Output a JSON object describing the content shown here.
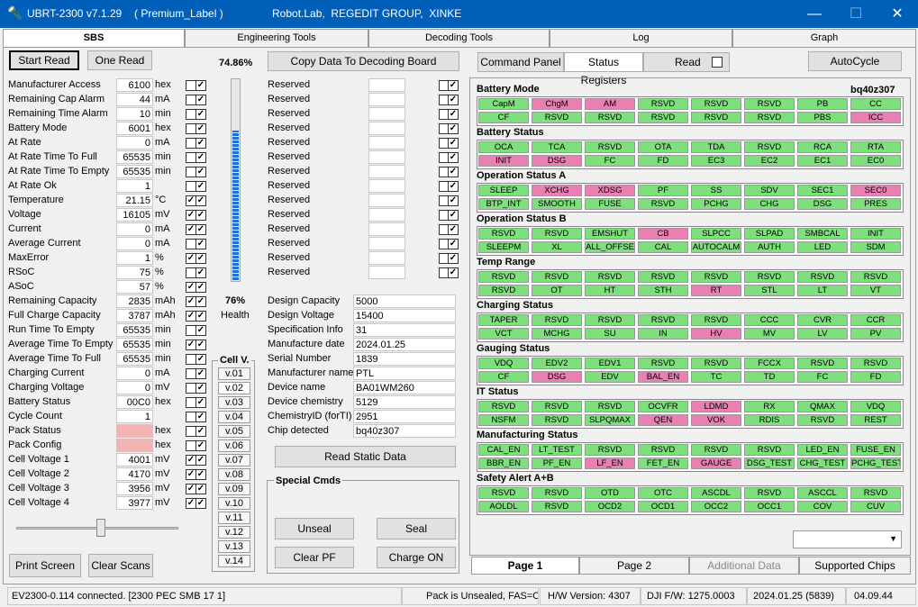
{
  "app": {
    "title": "UBRT-2300 v7.1.29",
    "label": "( Premium_Label )",
    "vendor": "Robot.Lab,  REGEDIT GROUP,  XINKE",
    "colors": {
      "titlebar": "#005fb8",
      "green": "#7de07d",
      "pink": "#ea7fb3",
      "progress": "#1e6fcf"
    }
  },
  "tabs": [
    "SBS",
    "Engineering Tools",
    "Decoding Tools",
    "Log",
    "Graph"
  ],
  "left": {
    "start_read": "Start Read",
    "one_read": "One Read",
    "progress_pct": "74.86%",
    "progress_value": 0.7486,
    "health_pct": "76%",
    "health_label": "Health",
    "health_value": 0.76,
    "copy_btn": "Copy Data To Decoding Board",
    "print_btn": "Print Screen",
    "clear_btn": "Clear Scans",
    "params": [
      {
        "name": "Manufacturer Access",
        "value": "6100",
        "unit": "hex",
        "c1": false,
        "c2": true
      },
      {
        "name": "Remaining Cap Alarm",
        "value": "44",
        "unit": "mA",
        "c1": false,
        "c2": true
      },
      {
        "name": "Remaining Time Alarm",
        "value": "10",
        "unit": "min",
        "c1": false,
        "c2": true
      },
      {
        "name": "Battery Mode",
        "value": "6001",
        "unit": "hex",
        "c1": false,
        "c2": true
      },
      {
        "name": "At Rate",
        "value": "0",
        "unit": "mA",
        "c1": false,
        "c2": true
      },
      {
        "name": "At Rate Time To Full",
        "value": "65535",
        "unit": "min",
        "c1": false,
        "c2": true
      },
      {
        "name": "At Rate Time To Empty",
        "value": "65535",
        "unit": "min",
        "c1": false,
        "c2": true
      },
      {
        "name": "At Rate Ok",
        "value": "1",
        "unit": "",
        "c1": false,
        "c2": true
      },
      {
        "name": "Temperature",
        "value": "21.15",
        "unit": "°C",
        "c1": true,
        "c2": true
      },
      {
        "name": "Voltage",
        "value": "16105",
        "unit": "mV",
        "c1": true,
        "c2": true
      },
      {
        "name": "Current",
        "value": "0",
        "unit": "mA",
        "c1": true,
        "c2": true
      },
      {
        "name": "Average Current",
        "value": "0",
        "unit": "mA",
        "c1": false,
        "c2": true
      },
      {
        "name": "MaxError",
        "value": "1",
        "unit": "%",
        "c1": true,
        "c2": true
      },
      {
        "name": "RSoC",
        "value": "75",
        "unit": "%",
        "c1": false,
        "c2": true
      },
      {
        "name": "ASoC",
        "value": "57",
        "unit": "%",
        "c1": true,
        "c2": true
      },
      {
        "name": "Remaining Capacity",
        "value": "2835",
        "unit": "mAh",
        "c1": true,
        "c2": true
      },
      {
        "name": "Full Charge Capacity",
        "value": "3787",
        "unit": "mAh",
        "c1": true,
        "c2": true
      },
      {
        "name": "Run Time To Empty",
        "value": "65535",
        "unit": "min",
        "c1": false,
        "c2": true
      },
      {
        "name": "Average Time To Empty",
        "value": "65535",
        "unit": "min",
        "c1": true,
        "c2": true
      },
      {
        "name": "Average Time To Full",
        "value": "65535",
        "unit": "min",
        "c1": false,
        "c2": true
      },
      {
        "name": "Charging Current",
        "value": "0",
        "unit": "mA",
        "c1": false,
        "c2": true
      },
      {
        "name": "Charging Voltage",
        "value": "0",
        "unit": "mV",
        "c1": false,
        "c2": true
      },
      {
        "name": "Battery Status",
        "value": "00C0",
        "unit": "hex",
        "c1": false,
        "c2": true
      },
      {
        "name": "Cycle Count",
        "value": "1",
        "unit": "",
        "c1": false,
        "c2": true
      },
      {
        "name": "Pack Status",
        "value": "",
        "unit": "hex",
        "c1": false,
        "c2": true,
        "pink": true
      },
      {
        "name": "Pack Config",
        "value": "",
        "unit": "hex",
        "c1": false,
        "c2": true,
        "pink": true
      },
      {
        "name": "Cell Voltage 1",
        "value": "4001",
        "unit": "mV",
        "c1": true,
        "c2": true
      },
      {
        "name": "Cell Voltage 2",
        "value": "4170",
        "unit": "mV",
        "c1": true,
        "c2": true
      },
      {
        "name": "Cell Voltage 3",
        "value": "3956",
        "unit": "mV",
        "c1": true,
        "c2": true
      },
      {
        "name": "Cell Voltage 4",
        "value": "3977",
        "unit": "mV",
        "c1": true,
        "c2": true
      }
    ],
    "reserved": [
      "Reserved",
      "Reserved",
      "Reserved",
      "Reserved",
      "Reserved",
      "Reserved",
      "Reserved",
      "Reserved",
      "Reserved",
      "Reserved",
      "Reserved",
      "Reserved",
      "Reserved",
      "Reserved"
    ],
    "info": [
      {
        "name": "Design Capacity",
        "value": "5000"
      },
      {
        "name": "Design Voltage",
        "value": "15400"
      },
      {
        "name": "Specification Info",
        "value": "31"
      },
      {
        "name": "Manufacture date",
        "value": "2024.01.25"
      },
      {
        "name": "Serial Number",
        "value": "1839"
      },
      {
        "name": "Manufacturer name",
        "value": "PTL"
      },
      {
        "name": "Device name",
        "value": "BA01WM260"
      },
      {
        "name": "Device chemistry",
        "value": "5129"
      },
      {
        "name": "ChemistryID (forTI)",
        "value": "2951"
      },
      {
        "name": "Chip detected",
        "value": "bq40z307"
      }
    ],
    "read_static": "Read Static Data",
    "cellv_title": "Cell V.",
    "cellv": [
      "v.01",
      "v.02",
      "v.03",
      "v.04",
      "v.05",
      "v.06",
      "v.07",
      "v.08",
      "v.09",
      "v.10",
      "v.11",
      "v.12",
      "v.13",
      "v.14"
    ],
    "special_title": "Special Cmds",
    "special": [
      "Unseal",
      "Seal",
      "Clear PF",
      "Charge ON"
    ]
  },
  "right": {
    "command_panel": "Command Panel",
    "status_registers": "Status Registers",
    "read_label": "Read",
    "autocycle": "AutoCycle",
    "chip": "bq40z307",
    "sections": [
      {
        "title": "Battery Mode",
        "rows": [
          [
            [
              "CapM",
              0
            ],
            [
              "ChgM",
              1
            ],
            [
              "AM",
              1
            ],
            [
              "RSVD",
              0
            ],
            [
              "RSVD",
              0
            ],
            [
              "RSVD",
              0
            ],
            [
              "PB",
              0
            ],
            [
              "CC",
              0
            ]
          ],
          [
            [
              "CF",
              0
            ],
            [
              "RSVD",
              0
            ],
            [
              "RSVD",
              0
            ],
            [
              "RSVD",
              0
            ],
            [
              "RSVD",
              0
            ],
            [
              "RSVD",
              0
            ],
            [
              "PBS",
              0
            ],
            [
              "ICC",
              1
            ]
          ]
        ]
      },
      {
        "title": "Battery Status",
        "rows": [
          [
            [
              "OCA",
              0
            ],
            [
              "TCA",
              0
            ],
            [
              "RSVD",
              0
            ],
            [
              "OTA",
              0
            ],
            [
              "TDA",
              0
            ],
            [
              "RSVD",
              0
            ],
            [
              "RCA",
              0
            ],
            [
              "RTA",
              0
            ]
          ],
          [
            [
              "INIT",
              1
            ],
            [
              "DSG",
              1
            ],
            [
              "FC",
              0
            ],
            [
              "FD",
              0
            ],
            [
              "EC3",
              0
            ],
            [
              "EC2",
              0
            ],
            [
              "EC1",
              0
            ],
            [
              "EC0",
              0
            ]
          ]
        ]
      },
      {
        "title": "Operation Status A",
        "rows": [
          [
            [
              "SLEEP",
              0
            ],
            [
              "XCHG",
              1
            ],
            [
              "XDSG",
              1
            ],
            [
              "PF",
              0
            ],
            [
              "SS",
              0
            ],
            [
              "SDV",
              0
            ],
            [
              "SEC1",
              0
            ],
            [
              "SEC0",
              1
            ]
          ],
          [
            [
              "BTP_INT",
              0
            ],
            [
              "SMOOTH",
              0
            ],
            [
              "FUSE",
              0
            ],
            [
              "RSVD",
              0
            ],
            [
              "PCHG",
              0
            ],
            [
              "CHG",
              0
            ],
            [
              "DSG",
              0
            ],
            [
              "PRES",
              0
            ]
          ]
        ]
      },
      {
        "title": "Operation Status B",
        "rows": [
          [
            [
              "RSVD",
              0
            ],
            [
              "RSVD",
              0
            ],
            [
              "EMSHUT",
              0
            ],
            [
              "CB",
              1
            ],
            [
              "SLPCC",
              0
            ],
            [
              "SLPAD",
              0
            ],
            [
              "SMBCAL",
              0
            ],
            [
              "INIT",
              0
            ]
          ],
          [
            [
              "SLEEPM",
              0
            ],
            [
              "XL",
              0
            ],
            [
              "ALL_OFFSE",
              0
            ],
            [
              "CAL",
              0
            ],
            [
              "AUTOCALM",
              0
            ],
            [
              "AUTH",
              0
            ],
            [
              "LED",
              0
            ],
            [
              "SDM",
              0
            ]
          ]
        ]
      },
      {
        "title": "Temp Range",
        "rows": [
          [
            [
              "RSVD",
              0
            ],
            [
              "RSVD",
              0
            ],
            [
              "RSVD",
              0
            ],
            [
              "RSVD",
              0
            ],
            [
              "RSVD",
              0
            ],
            [
              "RSVD",
              0
            ],
            [
              "RSVD",
              0
            ],
            [
              "RSVD",
              0
            ]
          ],
          [
            [
              "RSVD",
              0
            ],
            [
              "OT",
              0
            ],
            [
              "HT",
              0
            ],
            [
              "STH",
              0
            ],
            [
              "RT",
              1
            ],
            [
              "STL",
              0
            ],
            [
              "LT",
              0
            ],
            [
              "VT",
              0
            ]
          ]
        ]
      },
      {
        "title": "Charging Status",
        "rows": [
          [
            [
              "TAPER",
              0
            ],
            [
              "RSVD",
              0
            ],
            [
              "RSVD",
              0
            ],
            [
              "RSVD",
              0
            ],
            [
              "RSVD",
              0
            ],
            [
              "CCC",
              0
            ],
            [
              "CVR",
              0
            ],
            [
              "CCR",
              0
            ]
          ],
          [
            [
              "VCT",
              0
            ],
            [
              "MCHG",
              0
            ],
            [
              "SU",
              0
            ],
            [
              "IN",
              0
            ],
            [
              "HV",
              1
            ],
            [
              "MV",
              0
            ],
            [
              "LV",
              0
            ],
            [
              "PV",
              0
            ]
          ]
        ]
      },
      {
        "title": "Gauging Status",
        "rows": [
          [
            [
              "VDQ",
              0
            ],
            [
              "EDV2",
              0
            ],
            [
              "EDV1",
              0
            ],
            [
              "RSVD",
              0
            ],
            [
              "RSVD",
              0
            ],
            [
              "FCCX",
              0
            ],
            [
              "RSVD",
              0
            ],
            [
              "RSVD",
              0
            ]
          ],
          [
            [
              "CF",
              0
            ],
            [
              "DSG",
              1
            ],
            [
              "EDV",
              0
            ],
            [
              "BAL_EN",
              1
            ],
            [
              "TC",
              0
            ],
            [
              "TD",
              0
            ],
            [
              "FC",
              0
            ],
            [
              "FD",
              0
            ]
          ]
        ]
      },
      {
        "title": "IT Status",
        "rows": [
          [
            [
              "RSVD",
              0
            ],
            [
              "RSVD",
              0
            ],
            [
              "RSVD",
              0
            ],
            [
              "OCVFR",
              0
            ],
            [
              "LDMD",
              1
            ],
            [
              "RX",
              0
            ],
            [
              "QMAX",
              0
            ],
            [
              "VDQ",
              0
            ]
          ],
          [
            [
              "NSFM",
              0
            ],
            [
              "RSVD",
              0
            ],
            [
              "SLPQMAX",
              0
            ],
            [
              "QEN",
              1
            ],
            [
              "VOK",
              1
            ],
            [
              "RDIS",
              0
            ],
            [
              "RSVD",
              0
            ],
            [
              "REST",
              0
            ]
          ]
        ]
      },
      {
        "title": "Manufacturing Status",
        "rows": [
          [
            [
              "CAL_EN",
              0
            ],
            [
              "LT_TEST",
              0
            ],
            [
              "RSVD",
              0
            ],
            [
              "RSVD",
              0
            ],
            [
              "RSVD",
              0
            ],
            [
              "RSVD",
              0
            ],
            [
              "LED_EN",
              0
            ],
            [
              "FUSE_EN",
              0
            ]
          ],
          [
            [
              "BBR_EN",
              0
            ],
            [
              "PF_EN",
              0
            ],
            [
              "LF_EN",
              1
            ],
            [
              "FET_EN",
              0
            ],
            [
              "GAUGE",
              1
            ],
            [
              "DSG_TEST",
              0
            ],
            [
              "CHG_TEST",
              0
            ],
            [
              "PCHG_TEST",
              0
            ]
          ]
        ]
      },
      {
        "title": "Safety Alert A+B",
        "rows": [
          [
            [
              "RSVD",
              0
            ],
            [
              "RSVD",
              0
            ],
            [
              "OTD",
              0
            ],
            [
              "OTC",
              0
            ],
            [
              "ASCDL",
              0
            ],
            [
              "RSVD",
              0
            ],
            [
              "ASCCL",
              0
            ],
            [
              "RSVD",
              0
            ]
          ],
          [
            [
              "AOLDL",
              0
            ],
            [
              "RSVD",
              0
            ],
            [
              "OCD2",
              0
            ],
            [
              "OCD1",
              0
            ],
            [
              "OCC2",
              0
            ],
            [
              "OCC1",
              0
            ],
            [
              "COV",
              0
            ],
            [
              "CUV",
              0
            ]
          ]
        ]
      }
    ],
    "pages": [
      "Page 1",
      "Page 2",
      "Additional Data",
      "Supported Chips"
    ]
  },
  "status_bar": [
    "EV2300-0.114 connected. [2300  PEC  SMB  17 1]",
    "Pack is Unsealed, FAS=OK",
    "H/W Version: 4307",
    "DJI F/W: 1275.0003",
    "2024.01.25  (5839)",
    "04.09.44"
  ]
}
